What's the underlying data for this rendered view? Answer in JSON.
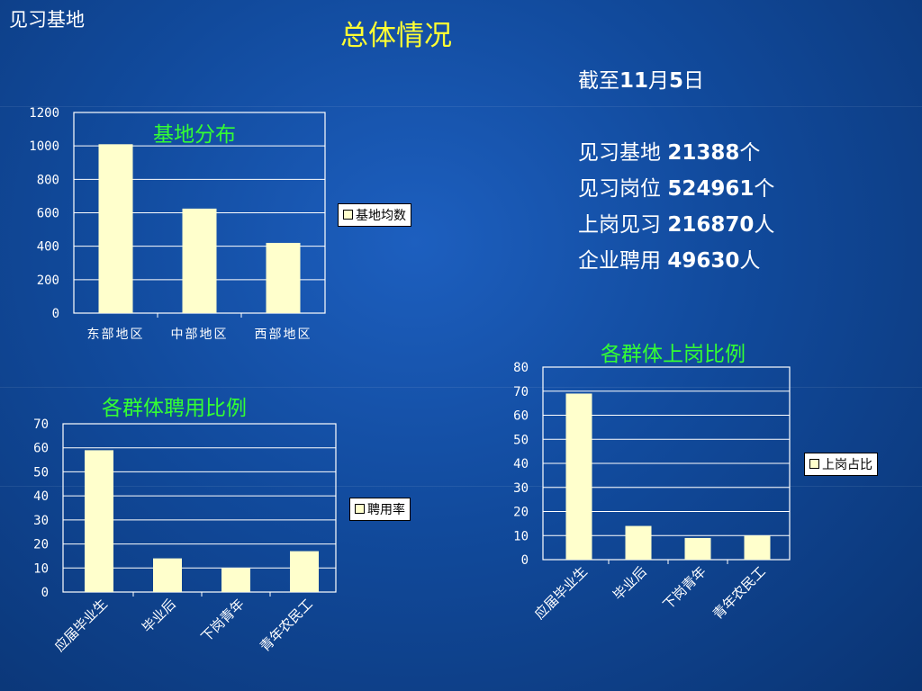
{
  "header": {
    "corner_title": "见习基地",
    "main_title": "总体情况"
  },
  "stats": {
    "as_of_prefix": "截至",
    "as_of_month": "11",
    "as_of_month_unit": "月",
    "as_of_day": "5",
    "as_of_day_unit": "日",
    "items": [
      {
        "label": "见习基地 ",
        "value": "21388",
        "unit": "个"
      },
      {
        "label": "见习岗位 ",
        "value": "524961",
        "unit": "个"
      },
      {
        "label": "上岗见习 ",
        "value": "216870",
        "unit": "人"
      },
      {
        "label": "企业聘用 ",
        "value": "49630",
        "unit": "人"
      }
    ]
  },
  "colors": {
    "bar_fill": "#ffffcc",
    "chart_title": "#33ff33",
    "main_title": "#ffff33"
  },
  "chart_data": [
    {
      "type": "bar",
      "title": "基地分布",
      "categories": [
        "东部地区",
        "中部地区",
        "西部地区"
      ],
      "series": [
        {
          "name": "基地均数",
          "values": [
            1010,
            625,
            420
          ]
        }
      ],
      "ylim": [
        0,
        1200
      ],
      "yticks": [
        "0",
        "200",
        "400",
        "600",
        "800",
        "1000",
        "1200"
      ],
      "grid": true,
      "legend": "right",
      "xlabel": "",
      "ylabel": ""
    },
    {
      "type": "bar",
      "title": "各群体聘用比例",
      "categories": [
        "应届毕业生",
        "毕业后",
        "下岗青年",
        "青年农民工"
      ],
      "series": [
        {
          "name": "聘用率",
          "values": [
            59,
            14,
            10,
            17
          ]
        }
      ],
      "ylim": [
        0,
        70
      ],
      "yticks": [
        "0",
        "10",
        "20",
        "30",
        "40",
        "50",
        "60",
        "70"
      ],
      "grid": true,
      "legend": "right",
      "xlabel": "",
      "ylabel": ""
    },
    {
      "type": "bar",
      "title": "各群体上岗比例",
      "categories": [
        "应届毕业生",
        "毕业后",
        "下岗青年",
        "青年农民工"
      ],
      "series": [
        {
          "name": "上岗占比",
          "values": [
            69,
            14,
            9,
            10
          ]
        }
      ],
      "ylim": [
        0,
        80
      ],
      "yticks": [
        "0",
        "10",
        "20",
        "30",
        "40",
        "50",
        "60",
        "70",
        "80"
      ],
      "grid": true,
      "legend": "right",
      "xlabel": "",
      "ylabel": ""
    }
  ]
}
